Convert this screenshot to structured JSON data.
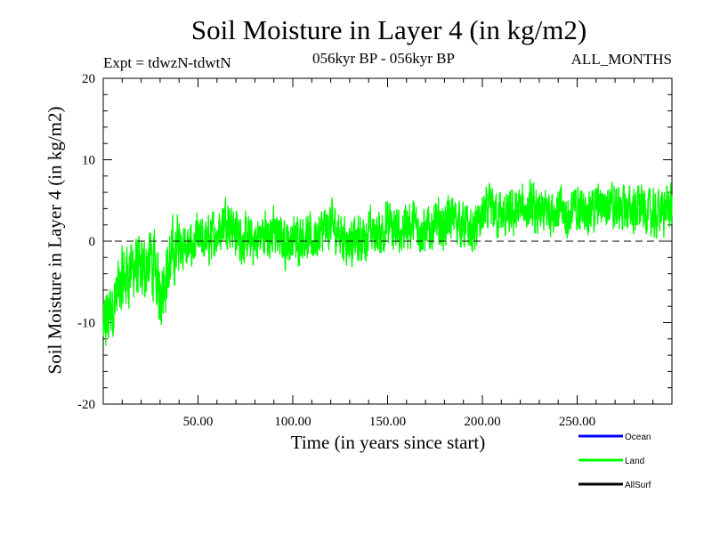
{
  "header": {
    "title": "Soil Moisture in Layer 4 (in kg/m2)",
    "experiment": "Expt = tdwzN-tdwtN",
    "period": "056kyr BP - 056kyr BP",
    "season": "ALL_MONTHS"
  },
  "chart_data": {
    "type": "line",
    "title": "Soil Moisture in Layer 4 (in kg/m2)",
    "xlabel": "Time (in years since start)",
    "ylabel": "Soil Moisture in Layer 4 (in kg/m2)",
    "xlim": [
      0,
      300
    ],
    "ylim": [
      -20,
      20
    ],
    "x_ticks": [
      50,
      100,
      150,
      200,
      250
    ],
    "x_tick_labels": [
      "50.00",
      "100.00",
      "150.00",
      "200.00",
      "250.00"
    ],
    "y_ticks": [
      -20,
      -10,
      0,
      10,
      20
    ],
    "y_tick_labels": [
      "-20",
      "-10",
      "0",
      "10",
      "20"
    ],
    "reference_line": {
      "y": 0,
      "style": "dashed"
    },
    "legend": {
      "placement": "bottom-right",
      "entries": [
        "Ocean",
        "Land",
        "AllSurf"
      ]
    },
    "series": [
      {
        "name": "Ocean",
        "color": "#0000ff",
        "values": []
      },
      {
        "name": "Land",
        "color": "#00ff00",
        "x": [
          0,
          5,
          10,
          15,
          20,
          25,
          30,
          35,
          40,
          45,
          50,
          55,
          60,
          65,
          70,
          75,
          80,
          85,
          90,
          95,
          100,
          105,
          110,
          115,
          120,
          125,
          130,
          135,
          140,
          145,
          150,
          155,
          160,
          165,
          170,
          175,
          180,
          185,
          190,
          195,
          200,
          205,
          210,
          215,
          220,
          225,
          230,
          235,
          240,
          245,
          250,
          255,
          260,
          265,
          270,
          275,
          280,
          285,
          290,
          295,
          300
        ],
        "values": [
          -11,
          -8,
          -5,
          -3,
          -4,
          -2,
          -6,
          -3,
          0,
          -1,
          0,
          0,
          1,
          3,
          1,
          0,
          0,
          1,
          1,
          0,
          0,
          1,
          0,
          1,
          2,
          1,
          0,
          0,
          1,
          1,
          2,
          1,
          2,
          2,
          1,
          2,
          2,
          3,
          2,
          1,
          3,
          4,
          3,
          3,
          4,
          4,
          3,
          4,
          4,
          3,
          4,
          4,
          4,
          5,
          4,
          4,
          4,
          4,
          3,
          4,
          4
        ]
      },
      {
        "name": "AllSurf",
        "color": "#000000",
        "values": []
      }
    ]
  },
  "colors": {
    "land": "#00ff00",
    "ocean": "#0000ff",
    "allsurf": "#000000"
  }
}
